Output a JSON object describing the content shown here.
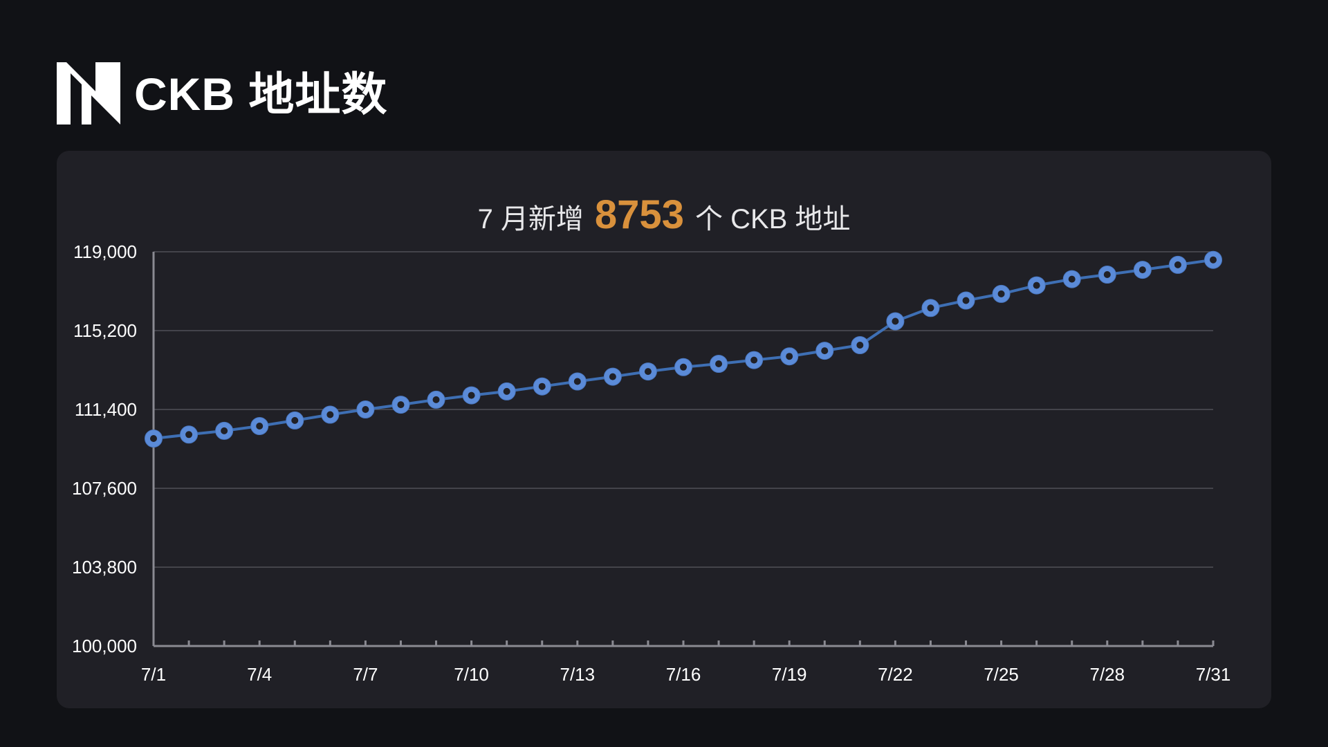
{
  "header": {
    "title": "CKB 地址数",
    "logo_icon": "n-logo-icon"
  },
  "headline": {
    "prefix": "7 月新增",
    "highlight": "8753",
    "suffix": "个 CKB 地址",
    "highlight_color": "#d9913c"
  },
  "chart_data": {
    "type": "line",
    "x": [
      "7/1",
      "7/2",
      "7/3",
      "7/4",
      "7/5",
      "7/6",
      "7/7",
      "7/8",
      "7/9",
      "7/10",
      "7/11",
      "7/12",
      "7/13",
      "7/14",
      "7/15",
      "7/16",
      "7/17",
      "7/18",
      "7/19",
      "7/20",
      "7/21",
      "7/22",
      "7/23",
      "7/24",
      "7/25",
      "7/26",
      "7/27",
      "7/28",
      "7/29",
      "7/30",
      "7/31"
    ],
    "x_tick_labels": [
      "7/1",
      "7/4",
      "7/7",
      "7/10",
      "7/13",
      "7/16",
      "7/19",
      "7/22",
      "7/25",
      "7/28",
      "7/31"
    ],
    "series": [
      {
        "values": [
          110000,
          110190,
          110370,
          110600,
          110870,
          111150,
          111400,
          111630,
          111870,
          112080,
          112270,
          112510,
          112750,
          112980,
          113230,
          113440,
          113600,
          113780,
          113960,
          114230,
          114500,
          115650,
          116290,
          116650,
          116970,
          117380,
          117680,
          117900,
          118130,
          118370,
          118610
        ],
        "color": "#5b8bd8"
      }
    ],
    "ylim": [
      100000,
      119000
    ],
    "y_ticks": [
      100000,
      103800,
      107600,
      111400,
      115200,
      119000
    ],
    "y_tick_labels": [
      "100,000",
      "103,800",
      "107,600",
      "111,400",
      "115,200",
      "119,000"
    ],
    "grid": true,
    "xlabel": "",
    "ylabel": ""
  }
}
